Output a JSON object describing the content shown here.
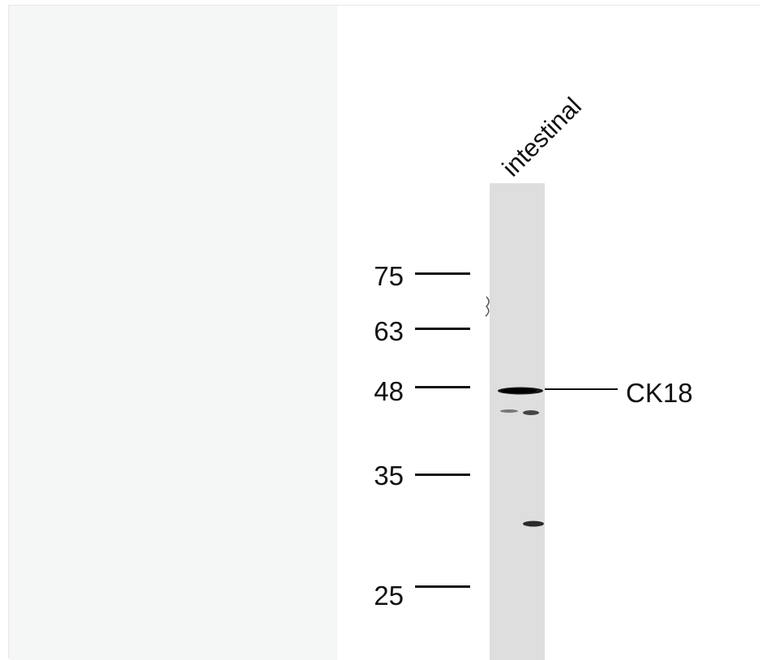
{
  "lane_label": "intestinal",
  "markers": [
    "75",
    "63",
    "48",
    "35",
    "25"
  ],
  "band_label": "CK18"
}
